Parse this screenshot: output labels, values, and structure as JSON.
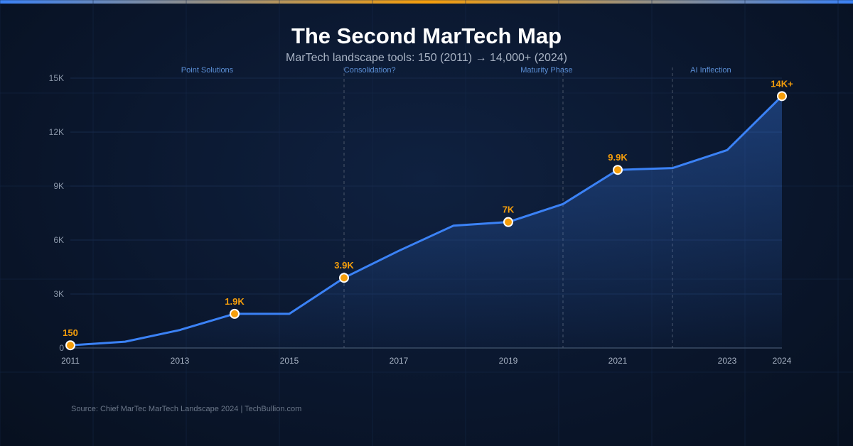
{
  "chart_data": {
    "type": "area",
    "title": "The Second MarTech Map",
    "subtitle": "MarTech landscape tools: 150 (2011) → 14,000+ (2024)",
    "x": [
      2011,
      2012,
      2013,
      2014,
      2015,
      2016,
      2017,
      2018,
      2019,
      2020,
      2021,
      2022,
      2023,
      2024
    ],
    "values": [
      150,
      350,
      1000,
      1900,
      1900,
      3900,
      5400,
      6800,
      7000,
      8000,
      9900,
      10000,
      11000,
      14000
    ],
    "xlim": [
      2011,
      2024
    ],
    "ylim": [
      0,
      15000
    ],
    "x_ticks": [
      "2011",
      "2013",
      "2015",
      "2017",
      "2019",
      "2021",
      "2023",
      "2024"
    ],
    "y_ticks": [
      {
        "value": 0,
        "label": "0"
      },
      {
        "value": 3000,
        "label": "3K"
      },
      {
        "value": 6000,
        "label": "6K"
      },
      {
        "value": 9000,
        "label": "9K"
      },
      {
        "value": 12000,
        "label": "12K"
      },
      {
        "value": 15000,
        "label": "15K"
      }
    ],
    "data_labels": [
      {
        "x": 2011,
        "y": 150,
        "label": "150"
      },
      {
        "x": 2014,
        "y": 1900,
        "label": "1.9K"
      },
      {
        "x": 2016,
        "y": 3900,
        "label": "3.9K"
      },
      {
        "x": 2019,
        "y": 7000,
        "label": "7K"
      },
      {
        "x": 2021,
        "y": 9900,
        "label": "9.9K"
      },
      {
        "x": 2024,
        "y": 14000,
        "label": "14K+"
      }
    ],
    "phases": [
      {
        "label": "Point Solutions"
      },
      {
        "label": "Consolidation?",
        "start": 2016
      },
      {
        "label": "Maturity Phase",
        "start": 2020
      },
      {
        "label": "AI Inflection",
        "start": 2022
      }
    ],
    "grid": true,
    "colors": {
      "line": "#3b82f6",
      "marker": "#f59e0b",
      "label": "#f59e0b",
      "phase": "#5b8fd6"
    }
  },
  "source": "Source: Chief MarTec MarTech Landscape 2024 | TechBullion.com"
}
